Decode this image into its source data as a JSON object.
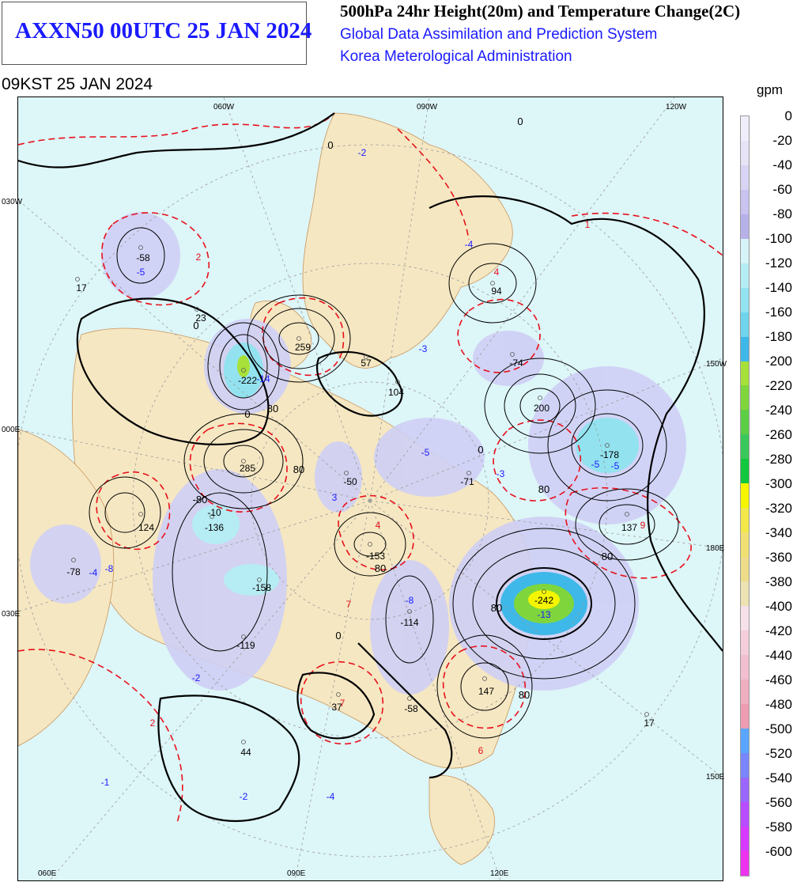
{
  "header": {
    "product": "AXXN50 00UTC 25 JAN 2024",
    "title": "500hPa 24hr Height(20m) and Temperature Change(2C)",
    "org1": "Global Data Assimilation and Prediction System",
    "org2": "Korea Meterological Administration",
    "valid": "09KST 25 JAN 2024"
  },
  "map": {
    "lon_labels": [
      "060W",
      "090W",
      "120W",
      "060E",
      "090E",
      "120E",
      "030W",
      "000E",
      "030E",
      "150W",
      "180E",
      "150E"
    ],
    "height_change_values": [
      {
        "text": "-58"
      },
      {
        "text": "17"
      },
      {
        "text": "23"
      },
      {
        "text": "259"
      },
      {
        "text": "-222"
      },
      {
        "text": "57"
      },
      {
        "text": "104"
      },
      {
        "text": "94"
      },
      {
        "text": "-74"
      },
      {
        "text": "200"
      },
      {
        "text": "-178"
      },
      {
        "text": "285"
      },
      {
        "text": "-50"
      },
      {
        "text": "-71"
      },
      {
        "text": "124"
      },
      {
        "text": "-136"
      },
      {
        "text": "-78"
      },
      {
        "text": "-158"
      },
      {
        "text": "-119"
      },
      {
        "text": "-153"
      },
      {
        "text": "-114"
      },
      {
        "text": "-242"
      },
      {
        "text": "137"
      },
      {
        "text": "147"
      },
      {
        "text": "37"
      },
      {
        "text": "-58"
      },
      {
        "text": "44"
      },
      {
        "text": "17"
      },
      {
        "text": "-10"
      }
    ],
    "temperature_change_values": [
      {
        "text": "-2"
      },
      {
        "text": "-5"
      },
      {
        "text": "2"
      },
      {
        "text": "-4"
      },
      {
        "text": "4"
      },
      {
        "text": "1"
      },
      {
        "text": "-3"
      },
      {
        "text": "-14"
      },
      {
        "text": "-5"
      },
      {
        "text": "3"
      },
      {
        "text": "-3"
      },
      {
        "text": "-5"
      },
      {
        "text": "-4"
      },
      {
        "text": "-8"
      },
      {
        "text": "7"
      },
      {
        "text": "-13"
      },
      {
        "text": "-2"
      },
      {
        "text": "2"
      },
      {
        "text": "-1"
      },
      {
        "text": "-2"
      },
      {
        "text": "-4"
      },
      {
        "text": "6"
      },
      {
        "text": "7"
      },
      {
        "text": "4"
      },
      {
        "text": "9"
      },
      {
        "text": "-8"
      },
      {
        "text": "-5"
      }
    ],
    "contour_labels": [
      "0",
      "0",
      "0",
      "0",
      "0",
      "0",
      "80",
      "80",
      "80",
      "80",
      "80",
      "80",
      "80",
      "-80"
    ]
  },
  "legend": {
    "unit": "gpm",
    "ticks": [
      "0",
      "-20",
      "-40",
      "-60",
      "-80",
      "-100",
      "-120",
      "-140",
      "-160",
      "-180",
      "-200",
      "-220",
      "-240",
      "-260",
      "-280",
      "-300",
      "-320",
      "-340",
      "-360",
      "-380",
      "-400",
      "-420",
      "-440",
      "-460",
      "-480",
      "-500",
      "-520",
      "-540",
      "-560",
      "-580",
      "-600"
    ],
    "colors": [
      "#f0eefa",
      "#e6e3f7",
      "#d8d4f3",
      "#c8c3ef",
      "#b7b1ea",
      "#d6f4f7",
      "#b6ecf3",
      "#93e2ef",
      "#6fd4ec",
      "#3eb8e8",
      "#a8e03a",
      "#7fd63c",
      "#5cce46",
      "#3ac85a",
      "#12c83e",
      "#f5f500",
      "#f2e84a",
      "#f0e072",
      "#eedc8a",
      "#ece2b2",
      "#f6e0ea",
      "#f4cedb",
      "#f2bfcf",
      "#f0aec1",
      "#ed9cb2",
      "#5aa6ff",
      "#7a86ff",
      "#9a66ff",
      "#b84cff",
      "#d63aff",
      "#ee33ee"
    ]
  },
  "colors": {
    "ocean": "#ddf6f8",
    "land": "#f5e7c2",
    "negative_fill": "#cfcff5",
    "height_contour": "#000000",
    "temp_contour": "#e8101a",
    "title_blue": "#1a1aff"
  }
}
